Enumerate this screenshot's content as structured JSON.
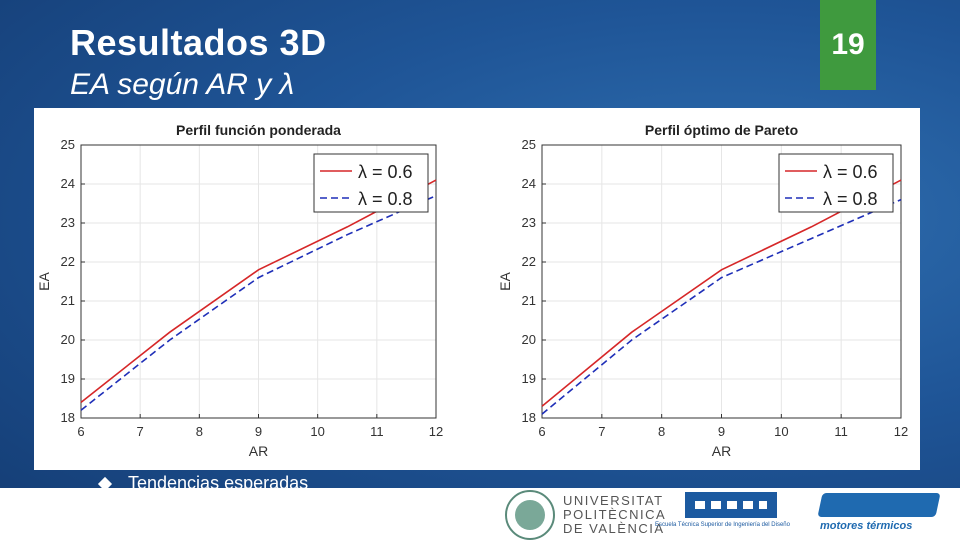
{
  "slide": {
    "title": "Resultados 3D",
    "subtitle": "EA según AR y λ",
    "page_number": "19",
    "bullet": "Tendencias esperadas"
  },
  "logos": {
    "upv_lines": [
      "UNIVERSITAT",
      "POLITÈCNICA",
      "DE VALÈNCIA"
    ],
    "etsid": "Escuela Técnica Superior de Ingeniería del Diseño",
    "cmt": "motores térmicos"
  },
  "colors": {
    "background": "#1f5597",
    "accent": "#3f9a3e",
    "series_06": "#d62728",
    "series_08": "#1f2fb8"
  },
  "chart_data": [
    {
      "type": "line",
      "title": "Perfil función ponderada",
      "xlabel": "AR",
      "ylabel": "EA",
      "xlim": [
        6,
        12
      ],
      "ylim": [
        18,
        25
      ],
      "xticks": [
        6,
        7,
        8,
        9,
        10,
        11,
        12
      ],
      "yticks": [
        18,
        19,
        20,
        21,
        22,
        23,
        24,
        25
      ],
      "grid": true,
      "legend_position": "top-right",
      "series": [
        {
          "name": "λ = 0.6",
          "style": "solid",
          "color": "#d62728",
          "x": [
            6,
            7.5,
            9,
            10.5,
            12
          ],
          "y": [
            18.4,
            20.2,
            21.8,
            22.9,
            24.1
          ]
        },
        {
          "name": "λ = 0.8",
          "style": "dashed",
          "color": "#1f2fb8",
          "x": [
            6,
            7.5,
            9,
            10.5,
            12
          ],
          "y": [
            18.2,
            20.0,
            21.6,
            22.7,
            23.7
          ]
        }
      ]
    },
    {
      "type": "line",
      "title": "Perfil óptimo de Pareto",
      "xlabel": "AR",
      "ylabel": "EA",
      "xlim": [
        6,
        12
      ],
      "ylim": [
        18,
        25
      ],
      "xticks": [
        6,
        7,
        8,
        9,
        10,
        11,
        12
      ],
      "yticks": [
        18,
        19,
        20,
        21,
        22,
        23,
        24,
        25
      ],
      "grid": true,
      "legend_position": "top-right",
      "series": [
        {
          "name": "λ = 0.6",
          "style": "solid",
          "color": "#d62728",
          "x": [
            6,
            7.5,
            9,
            10.5,
            12
          ],
          "y": [
            18.3,
            20.2,
            21.8,
            22.9,
            24.1
          ]
        },
        {
          "name": "λ = 0.8",
          "style": "dashed",
          "color": "#1f2fb8",
          "x": [
            6,
            7.5,
            9,
            10.5,
            12
          ],
          "y": [
            18.1,
            20.0,
            21.6,
            22.6,
            23.6
          ]
        }
      ]
    }
  ]
}
